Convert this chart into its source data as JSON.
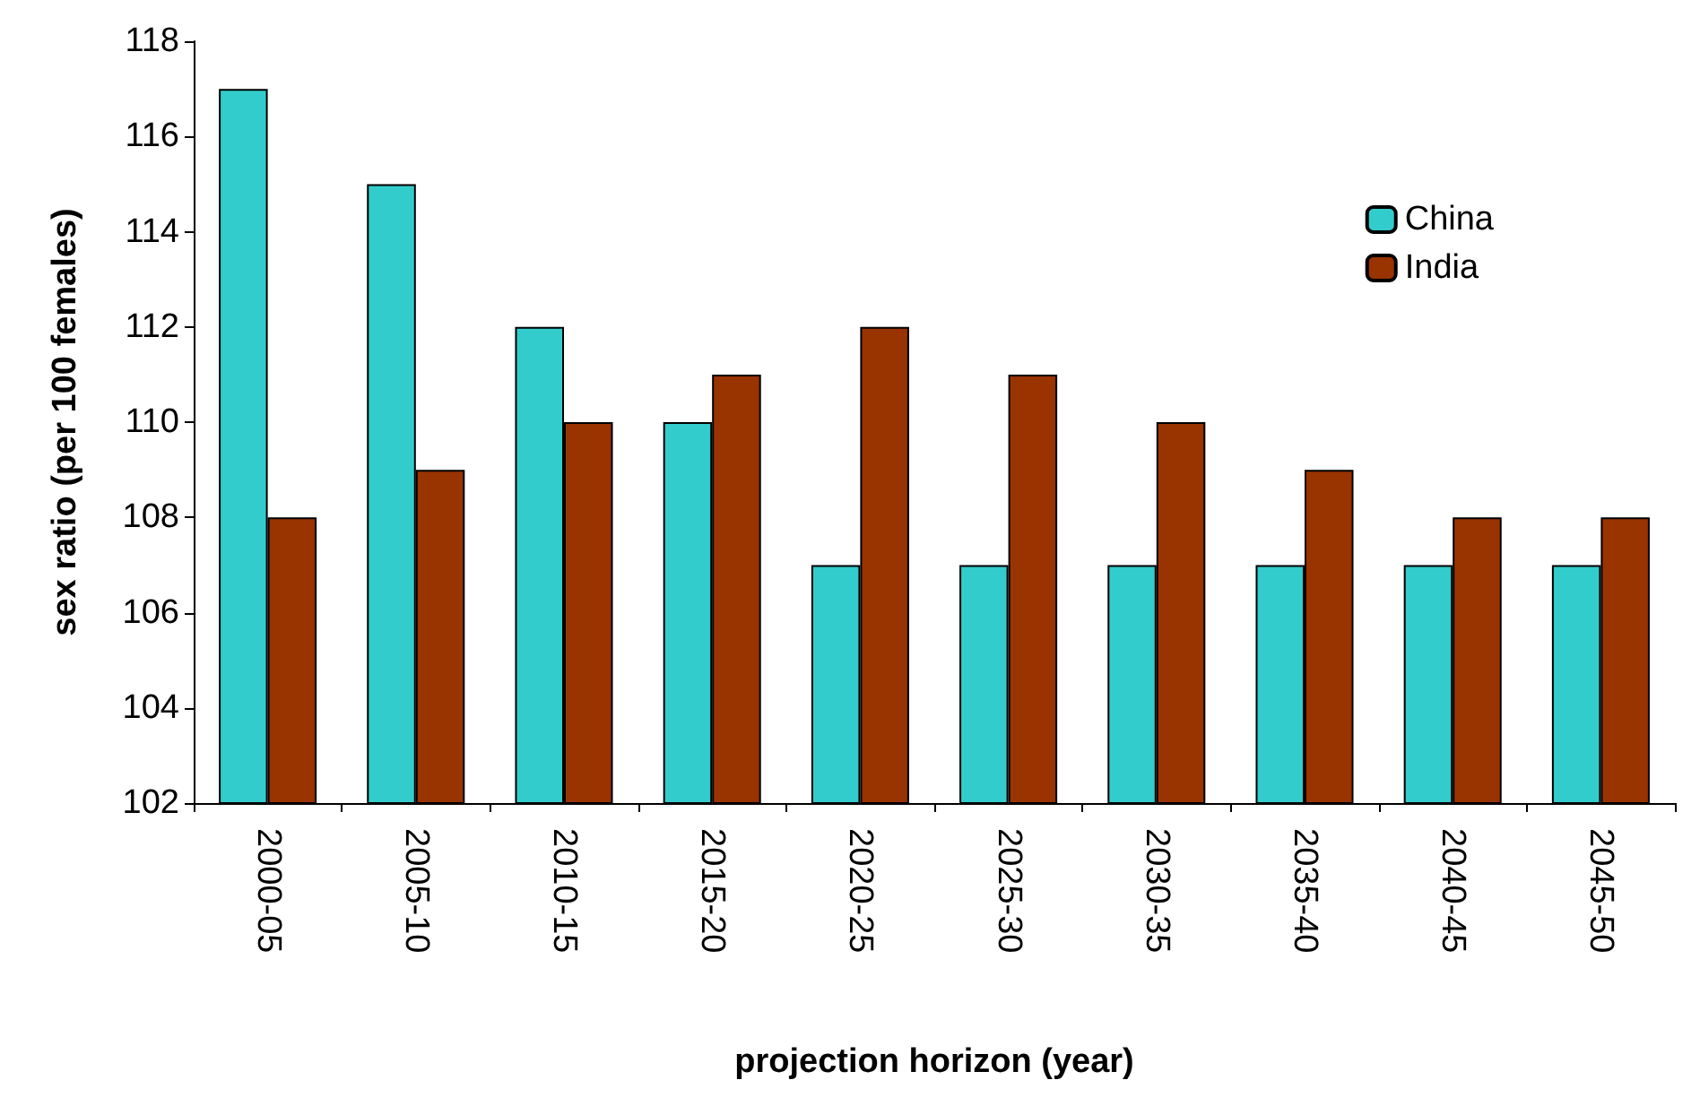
{
  "chart_data": {
    "type": "bar",
    "xlabel": "projection horizon (year)",
    "ylabel": "sex ratio (per 100 females)",
    "categories": [
      "2000-05",
      "2005-10",
      "2010-15",
      "2015-20",
      "2020-25",
      "2025-30",
      "2030-35",
      "2035-40",
      "2040-45",
      "2045-50"
    ],
    "series": [
      {
        "name": "China",
        "color": "#33cccc",
        "values": [
          117,
          115,
          112,
          110,
          107,
          107,
          107,
          107,
          107,
          107
        ]
      },
      {
        "name": "India",
        "color": "#993300",
        "values": [
          108,
          109,
          110,
          111,
          112,
          111,
          110,
          109,
          108,
          108
        ]
      }
    ],
    "ylim": [
      102,
      118
    ],
    "yticks": [
      102,
      104,
      106,
      108,
      110,
      112,
      114,
      116,
      118
    ],
    "grid": false,
    "legend": "top right"
  }
}
